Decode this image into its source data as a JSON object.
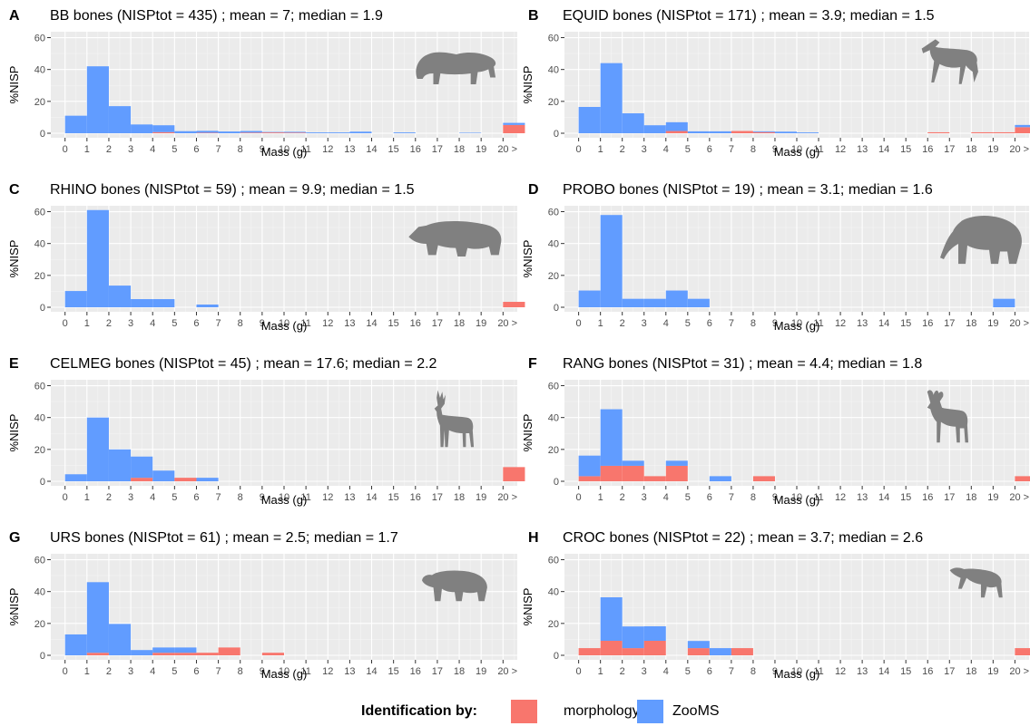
{
  "xlabel": "Mass (g)",
  "ylabel": "%NISP",
  "x_ticks": [
    "0",
    "1",
    "2",
    "3",
    "4",
    "5",
    "6",
    "7",
    "8",
    "9",
    "10",
    "11",
    "12",
    "13",
    "14",
    "15",
    "16",
    "17",
    "18",
    "19",
    "20 >"
  ],
  "y_ticks": [
    "0",
    "20",
    "40",
    "60"
  ],
  "colors": {
    "morphology": "#F8766D",
    "ZooMS": "#619CFF",
    "panel_bg": "#EBEBEB",
    "grid": "#FFFFFF",
    "silhouette": "#808080"
  },
  "legend": {
    "title": "Identification by:",
    "items": [
      {
        "label": "morphology",
        "color": "#F8766D"
      },
      {
        "label": "ZooMS",
        "color": "#619CFF"
      }
    ]
  },
  "chart_data": [
    {
      "letter": "A",
      "title": "BB bones (NISPtot = 435) ; mean = 7; median = 1.9",
      "type": "bar",
      "stacked": true,
      "ylim": [
        0,
        62
      ],
      "animal": "bison-silhouette-icon",
      "series": [
        {
          "name": "morphology",
          "values": [
            0,
            0,
            0,
            0,
            0.7,
            0,
            0.3,
            0,
            0.4,
            0.5,
            0.4,
            0,
            0,
            0,
            0,
            0,
            0,
            0,
            0,
            0,
            5.2
          ]
        },
        {
          "name": "ZooMS",
          "values": [
            11,
            42,
            17,
            5.5,
            4.3,
            1.3,
            1.2,
            1.1,
            1,
            0.3,
            0.5,
            0.5,
            0.5,
            1,
            0,
            0.5,
            0,
            0,
            0.3,
            0,
            1.3
          ]
        }
      ]
    },
    {
      "letter": "B",
      "title": "EQUID bones (NISPtot = 171) ; mean = 3.9; median = 1.5",
      "type": "bar",
      "stacked": true,
      "ylim": [
        0,
        62
      ],
      "animal": "horse-silhouette-icon",
      "series": [
        {
          "name": "morphology",
          "values": [
            0,
            0,
            0,
            0,
            1.4,
            0,
            0,
            1.4,
            0.7,
            0,
            0,
            0,
            0,
            0,
            0,
            0,
            0.6,
            0,
            0.6,
            0.6,
            3.8
          ]
        },
        {
          "name": "ZooMS",
          "values": [
            16.5,
            44,
            12.5,
            5,
            5.5,
            1.2,
            1.2,
            0,
            0.5,
            1,
            0.5,
            0,
            0,
            0,
            0,
            0,
            0,
            0,
            0,
            0,
            1.4
          ]
        }
      ]
    },
    {
      "letter": "C",
      "title": "RHINO bones (NISPtot = 59) ; mean = 9.9; median = 1.5",
      "type": "bar",
      "stacked": true,
      "ylim": [
        0,
        62
      ],
      "animal": "rhino-silhouette-icon",
      "series": [
        {
          "name": "morphology",
          "values": [
            0,
            0,
            0,
            0,
            0,
            0,
            0,
            0,
            0,
            0,
            0,
            0,
            0,
            0,
            0,
            0,
            0,
            0,
            0,
            0,
            3.4
          ]
        },
        {
          "name": "ZooMS",
          "values": [
            10.2,
            61,
            13.6,
            5.1,
            5.1,
            0,
            1.7,
            0,
            0,
            0,
            0,
            0,
            0,
            0,
            0,
            0,
            0,
            0,
            0,
            0,
            0
          ]
        }
      ]
    },
    {
      "letter": "D",
      "title": "PROBO bones (NISPtot = 19) ; mean = 3.1; median = 1.6",
      "type": "bar",
      "stacked": true,
      "ylim": [
        0,
        62
      ],
      "animal": "mammoth-silhouette-icon",
      "series": [
        {
          "name": "morphology",
          "values": [
            0,
            0,
            0,
            0,
            0,
            0,
            0,
            0,
            0,
            0,
            0,
            0,
            0,
            0,
            0,
            0,
            0,
            0,
            0,
            0,
            0
          ]
        },
        {
          "name": "ZooMS",
          "values": [
            10.5,
            57.9,
            5.3,
            5.3,
            10.5,
            5.3,
            0,
            0,
            0,
            0,
            0,
            0,
            0,
            0,
            0,
            0,
            0,
            0,
            0,
            5.3,
            0
          ]
        }
      ]
    },
    {
      "letter": "E",
      "title": "CELMEG bones (NISPtot = 45) ; mean = 17.6; median = 2.2",
      "type": "bar",
      "stacked": true,
      "ylim": [
        0,
        62
      ],
      "animal": "red-deer-silhouette-icon",
      "series": [
        {
          "name": "morphology",
          "values": [
            0,
            0,
            0,
            2.2,
            0,
            2.2,
            0,
            0,
            0,
            0,
            0,
            0,
            0,
            0,
            0,
            0,
            0,
            0,
            0,
            0,
            8.9
          ]
        },
        {
          "name": "ZooMS",
          "values": [
            4.4,
            40,
            20,
            13.3,
            6.7,
            0,
            2.2,
            0,
            0,
            0,
            0,
            0,
            0,
            0,
            0,
            0,
            0,
            0,
            0,
            0,
            0
          ]
        }
      ]
    },
    {
      "letter": "F",
      "title": "RANG bones (NISPtot = 31) ; mean = 4.4; median = 1.8",
      "type": "bar",
      "stacked": true,
      "ylim": [
        0,
        62
      ],
      "animal": "reindeer-silhouette-icon",
      "series": [
        {
          "name": "morphology",
          "values": [
            3.2,
            9.7,
            9.7,
            3.2,
            9.7,
            0,
            0,
            0,
            3.2,
            0,
            0,
            0,
            0,
            0,
            0,
            0,
            0,
            0,
            0,
            0,
            3.2
          ]
        },
        {
          "name": "ZooMS",
          "values": [
            12.9,
            35.5,
            3.2,
            0,
            3.2,
            0,
            3.2,
            0,
            0,
            0,
            0,
            0,
            0,
            0,
            0,
            0,
            0,
            0,
            0,
            0,
            0
          ]
        }
      ]
    },
    {
      "letter": "G",
      "title": "URS bones (NISPtot = 61) ; mean = 2.5; median = 1.7",
      "type": "bar",
      "stacked": true,
      "ylim": [
        0,
        62
      ],
      "animal": "bear-silhouette-icon",
      "series": [
        {
          "name": "morphology",
          "values": [
            0,
            1.6,
            0,
            0,
            1.6,
            1.6,
            1.6,
            4.9,
            0,
            1.6,
            0,
            0,
            0,
            0,
            0,
            0,
            0,
            0,
            0,
            0,
            0
          ]
        },
        {
          "name": "ZooMS",
          "values": [
            13.1,
            44.3,
            19.7,
            3.3,
            3.3,
            3.3,
            0,
            0,
            0,
            0,
            0,
            0,
            0,
            0,
            0,
            0,
            0,
            0,
            0,
            0,
            0
          ]
        }
      ]
    },
    {
      "letter": "H",
      "title": "CROC bones (NISPtot = 22) ; mean = 3.7; median = 2.6",
      "type": "bar",
      "stacked": true,
      "ylim": [
        0,
        62
      ],
      "animal": "hyena-silhouette-icon",
      "series": [
        {
          "name": "morphology",
          "values": [
            4.5,
            9.1,
            4.5,
            9.1,
            0,
            4.5,
            0,
            4.5,
            0,
            0,
            0,
            0,
            0,
            0,
            0,
            0,
            0,
            0,
            0,
            0,
            4.5
          ]
        },
        {
          "name": "ZooMS",
          "values": [
            0,
            27.3,
            13.6,
            9.1,
            0,
            4.5,
            4.5,
            0,
            0,
            0,
            0,
            0,
            0,
            0,
            0,
            0,
            0,
            0,
            0,
            0,
            0
          ]
        }
      ]
    }
  ]
}
